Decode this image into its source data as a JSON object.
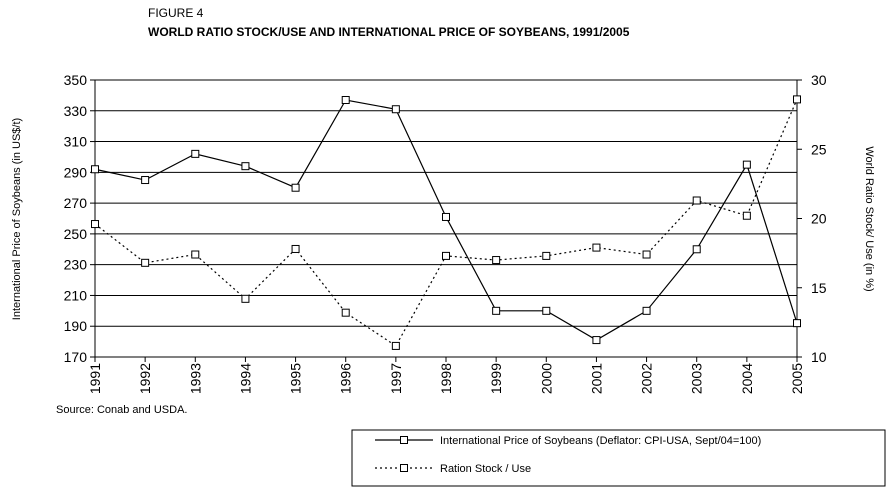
{
  "chart_data": {
    "type": "line",
    "figure_label": "FIGURE 4",
    "title": "WORLD RATIO STOCK/USE AND INTERNATIONAL PRICE OF SOYBEANS, 1991/2005",
    "y_label": "International Price of Soybeans (in US$/t)",
    "y2_label": "World Ratio Stock/ Use (in %)",
    "source": "Source: Conab and USDA.",
    "categories": [
      "1991",
      "1992",
      "1993",
      "1994",
      "1995",
      "1996",
      "1997",
      "1998",
      "1999",
      "2000",
      "2001",
      "2002",
      "2003",
      "2004",
      "2005"
    ],
    "series": [
      {
        "name": "International Price of Soybeans (Deflator: CPI-USA, Sept/04=100)",
        "color": "#000000",
        "dashed": false,
        "values": [
          292,
          285,
          302,
          294,
          280,
          337,
          331,
          261,
          200,
          200,
          181,
          200,
          240,
          295,
          192
        ]
      },
      {
        "name": "Ration Stock / Use",
        "color": "#000000",
        "dashed": true,
        "axis": "y2",
        "values": [
          19.6,
          16.8,
          17.4,
          14.2,
          17.8,
          13.2,
          10.8,
          17.3,
          17.0,
          17.3,
          17.9,
          17.4,
          21.3,
          20.2,
          28.6
        ]
      }
    ],
    "ylim": [
      170,
      350
    ],
    "yticks": [
      170,
      190,
      210,
      230,
      250,
      270,
      290,
      310,
      330,
      350
    ],
    "y2lim": [
      10,
      30
    ],
    "y2ticks": [
      10,
      15,
      20,
      25,
      30
    ],
    "grid": true
  }
}
